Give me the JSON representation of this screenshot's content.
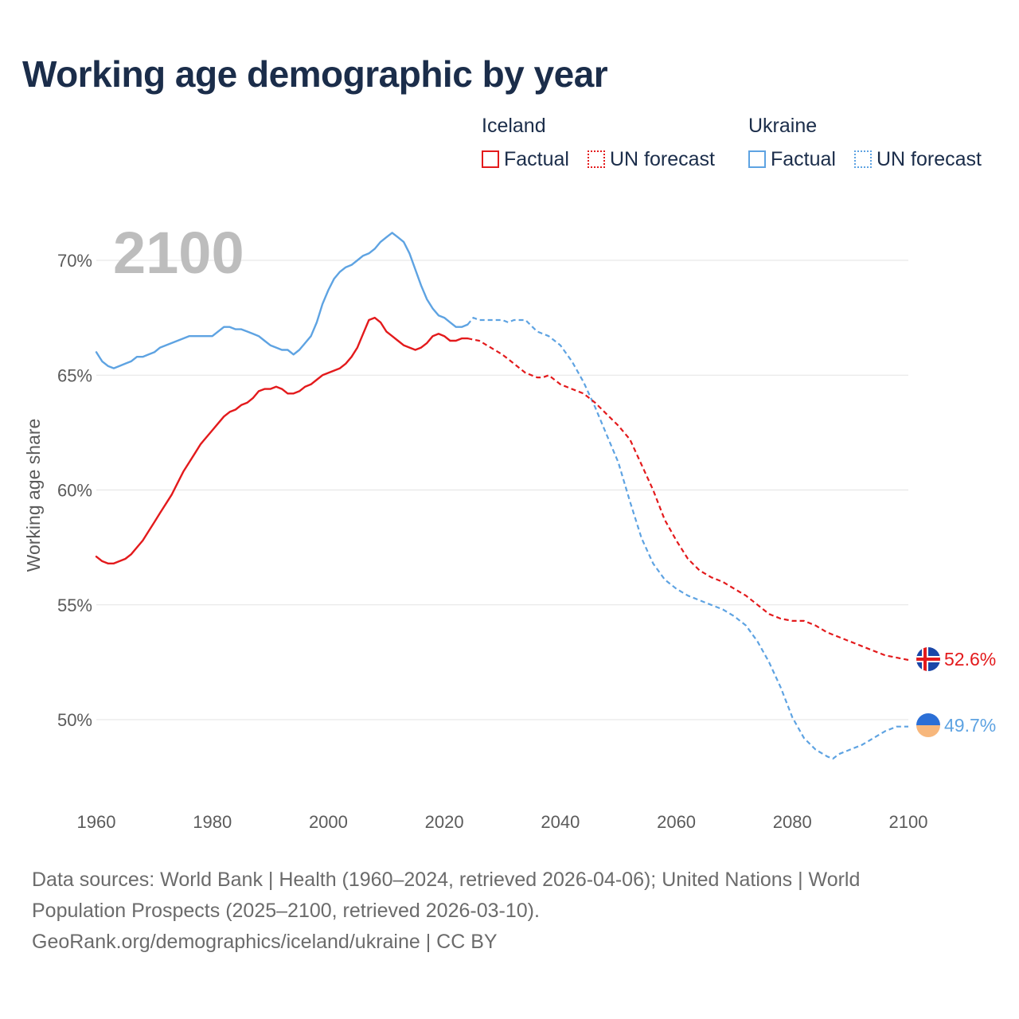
{
  "title": "Working age demographic by year",
  "legend": {
    "groups": [
      {
        "country": "Iceland",
        "factual_label": "Factual",
        "forecast_label": "UN forecast",
        "color": "#e31a1c"
      },
      {
        "country": "Ukraine",
        "factual_label": "Factual",
        "forecast_label": "UN forecast",
        "color": "#5ea3e2"
      }
    ]
  },
  "chart_data": {
    "type": "line",
    "title": "Working age demographic by year",
    "xlabel": "",
    "ylabel": "Working age share",
    "xlim": [
      1960,
      2100
    ],
    "ylim": [
      47,
      72
    ],
    "x_ticks": [
      1960,
      1980,
      2000,
      2020,
      2040,
      2060,
      2080,
      2100
    ],
    "y_ticks": [
      50,
      55,
      60,
      65,
      70
    ],
    "y_tick_labels": [
      "50%",
      "55%",
      "60%",
      "65%",
      "70%"
    ],
    "year_label": "2100",
    "grid": "horizontal",
    "series": [
      {
        "name": "Iceland",
        "color": "#e31a1c",
        "end_label": "52.6%",
        "end_icon": "iceland-flag-icon",
        "factual": {
          "x": [
            1960,
            1961,
            1962,
            1963,
            1964,
            1965,
            1966,
            1967,
            1968,
            1969,
            1970,
            1971,
            1972,
            1973,
            1974,
            1975,
            1976,
            1977,
            1978,
            1979,
            1980,
            1981,
            1982,
            1983,
            1984,
            1985,
            1986,
            1987,
            1988,
            1989,
            1990,
            1991,
            1992,
            1993,
            1994,
            1995,
            1996,
            1997,
            1998,
            1999,
            2000,
            2001,
            2002,
            2003,
            2004,
            2005,
            2006,
            2007,
            2008,
            2009,
            2010,
            2011,
            2012,
            2013,
            2014,
            2015,
            2016,
            2017,
            2018,
            2019,
            2020,
            2021,
            2022,
            2023,
            2024
          ],
          "y": [
            57.1,
            56.9,
            56.8,
            56.8,
            56.9,
            57.0,
            57.2,
            57.5,
            57.8,
            58.2,
            58.6,
            59.0,
            59.4,
            59.8,
            60.3,
            60.8,
            61.2,
            61.6,
            62.0,
            62.3,
            62.6,
            62.9,
            63.2,
            63.4,
            63.5,
            63.7,
            63.8,
            64.0,
            64.3,
            64.4,
            64.4,
            64.5,
            64.4,
            64.2,
            64.2,
            64.3,
            64.5,
            64.6,
            64.8,
            65.0,
            65.1,
            65.2,
            65.3,
            65.5,
            65.8,
            66.2,
            66.8,
            67.4,
            67.5,
            67.3,
            66.9,
            66.7,
            66.5,
            66.3,
            66.2,
            66.1,
            66.2,
            66.4,
            66.7,
            66.8,
            66.7,
            66.5,
            66.5,
            66.6,
            66.6
          ]
        },
        "forecast": {
          "x": [
            2024,
            2026,
            2028,
            2030,
            2032,
            2034,
            2036,
            2037,
            2038,
            2040,
            2042,
            2044,
            2046,
            2048,
            2050,
            2052,
            2054,
            2056,
            2058,
            2060,
            2062,
            2064,
            2066,
            2068,
            2070,
            2072,
            2074,
            2076,
            2078,
            2080,
            2082,
            2084,
            2086,
            2088,
            2090,
            2092,
            2094,
            2096,
            2098,
            2100
          ],
          "y": [
            66.6,
            66.5,
            66.2,
            65.9,
            65.5,
            65.1,
            64.9,
            64.9,
            65.0,
            64.6,
            64.4,
            64.2,
            63.8,
            63.3,
            62.8,
            62.2,
            61.1,
            60.0,
            58.7,
            57.8,
            57.0,
            56.5,
            56.2,
            56.0,
            55.7,
            55.4,
            55.0,
            54.6,
            54.4,
            54.3,
            54.3,
            54.1,
            53.8,
            53.6,
            53.4,
            53.2,
            53.0,
            52.8,
            52.7,
            52.6
          ]
        }
      },
      {
        "name": "Ukraine",
        "color": "#5ea3e2",
        "end_label": "49.7%",
        "end_icon": "ukraine-flag-icon",
        "factual": {
          "x": [
            1960,
            1961,
            1962,
            1963,
            1964,
            1965,
            1966,
            1967,
            1968,
            1969,
            1970,
            1971,
            1972,
            1973,
            1974,
            1975,
            1976,
            1977,
            1978,
            1979,
            1980,
            1981,
            1982,
            1983,
            1984,
            1985,
            1986,
            1987,
            1988,
            1989,
            1990,
            1991,
            1992,
            1993,
            1994,
            1995,
            1996,
            1997,
            1998,
            1999,
            2000,
            2001,
            2002,
            2003,
            2004,
            2005,
            2006,
            2007,
            2008,
            2009,
            2010,
            2011,
            2012,
            2013,
            2014,
            2015,
            2016,
            2017,
            2018,
            2019,
            2020,
            2021,
            2022,
            2023,
            2024
          ],
          "y": [
            66.0,
            65.6,
            65.4,
            65.3,
            65.4,
            65.5,
            65.6,
            65.8,
            65.8,
            65.9,
            66.0,
            66.2,
            66.3,
            66.4,
            66.5,
            66.6,
            66.7,
            66.7,
            66.7,
            66.7,
            66.7,
            66.9,
            67.1,
            67.1,
            67.0,
            67.0,
            66.9,
            66.8,
            66.7,
            66.5,
            66.3,
            66.2,
            66.1,
            66.1,
            65.9,
            66.1,
            66.4,
            66.7,
            67.3,
            68.1,
            68.7,
            69.2,
            69.5,
            69.7,
            69.8,
            70.0,
            70.2,
            70.3,
            70.5,
            70.8,
            71.0,
            71.2,
            71.0,
            70.8,
            70.3,
            69.6,
            68.9,
            68.3,
            67.9,
            67.6,
            67.5,
            67.3,
            67.1,
            67.1,
            67.2
          ]
        },
        "forecast": {
          "x": [
            2024,
            2025,
            2026,
            2028,
            2030,
            2031,
            2032,
            2034,
            2036,
            2038,
            2040,
            2042,
            2044,
            2046,
            2048,
            2050,
            2052,
            2054,
            2056,
            2058,
            2060,
            2062,
            2064,
            2066,
            2068,
            2070,
            2072,
            2074,
            2076,
            2078,
            2080,
            2082,
            2084,
            2086,
            2087,
            2088,
            2090,
            2092,
            2094,
            2096,
            2098,
            2100
          ],
          "y": [
            67.2,
            67.5,
            67.4,
            67.4,
            67.4,
            67.3,
            67.4,
            67.4,
            66.9,
            66.7,
            66.3,
            65.6,
            64.7,
            63.6,
            62.4,
            61.2,
            59.5,
            57.9,
            56.8,
            56.1,
            55.7,
            55.4,
            55.2,
            55.0,
            54.8,
            54.5,
            54.1,
            53.4,
            52.5,
            51.4,
            50.1,
            49.2,
            48.7,
            48.4,
            48.3,
            48.5,
            48.7,
            48.9,
            49.2,
            49.5,
            49.7,
            49.7
          ]
        }
      }
    ]
  },
  "footer": {
    "line1": "Data sources: World Bank | Health (1960–2024, retrieved 2026-04-06); United Nations | World",
    "line2": "Population Prospects (2025–2100, retrieved 2026-03-10).",
    "line3": "GeoRank.org/demographics/iceland/ukraine | CC BY"
  }
}
